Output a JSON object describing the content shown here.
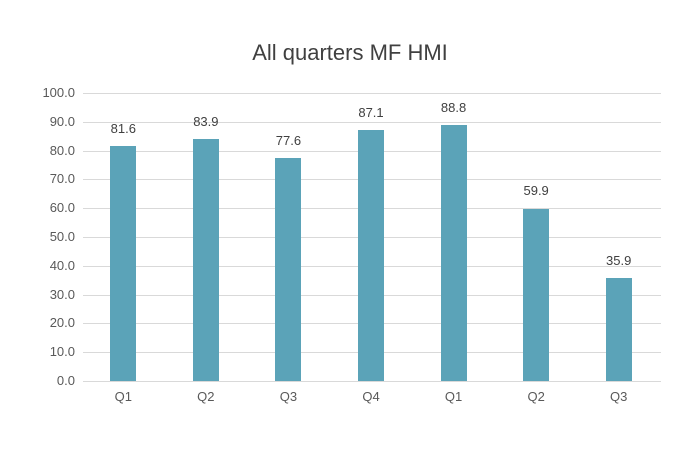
{
  "chart_data": {
    "type": "bar",
    "title": "All quarters MF HMI",
    "categories": [
      "Q1",
      "Q2",
      "Q3",
      "Q4",
      "Q1",
      "Q2",
      "Q3"
    ],
    "values": [
      81.6,
      83.9,
      77.6,
      87.1,
      88.8,
      59.9,
      35.9
    ],
    "value_labels": [
      "81.6",
      "83.9",
      "77.6",
      "87.1",
      "88.8",
      "59.9",
      "35.9"
    ],
    "xlabel": "",
    "ylabel": "",
    "ylim": [
      0,
      100
    ],
    "yticks": [
      "0.0",
      "10.0",
      "20.0",
      "30.0",
      "40.0",
      "50.0",
      "60.0",
      "70.0",
      "80.0",
      "90.0",
      "100.0"
    ],
    "grid": true,
    "legend": null,
    "bar_color": "#5ba3b8"
  }
}
